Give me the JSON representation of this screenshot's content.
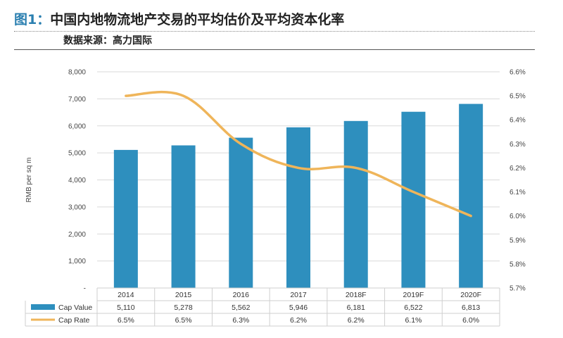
{
  "figure": {
    "label": "图1：",
    "title": "中国内地物流地产交易的平均估价及平均资本化率",
    "source": "数据来源：高力国际"
  },
  "chart_data": {
    "type": "bar",
    "categories": [
      "2014",
      "2015",
      "2016",
      "2017",
      "2018F",
      "2019F",
      "2020F"
    ],
    "series": [
      {
        "name": "Cap Value",
        "type": "bar",
        "axis": "left",
        "color": "#2e8fbe",
        "values": [
          5110,
          5278,
          5562,
          5946,
          6181,
          6522,
          6813
        ],
        "labels": [
          "5,110",
          "5,278",
          "5,562",
          "5,946",
          "6,181",
          "6,522",
          "6,813"
        ]
      },
      {
        "name": "Cap Rate",
        "type": "line",
        "axis": "right",
        "color": "#efb55a",
        "values": [
          6.5,
          6.5,
          6.3,
          6.2,
          6.2,
          6.1,
          6.0
        ],
        "labels": [
          "6.5%",
          "6.5%",
          "6.3%",
          "6.2%",
          "6.2%",
          "6.1%",
          "6.0%"
        ]
      }
    ],
    "ylabel": "RMB per sq m",
    "ylim": [
      0,
      8000
    ],
    "yticks": [
      "-",
      "1,000",
      "2,000",
      "3,000",
      "4,000",
      "5,000",
      "6,000",
      "7,000",
      "8,000"
    ],
    "y2lim": [
      5.7,
      6.6
    ],
    "y2ticks": [
      "5.7%",
      "5.8%",
      "5.9%",
      "6.0%",
      "6.1%",
      "6.2%",
      "6.3%",
      "6.4%",
      "6.5%",
      "6.6%"
    ],
    "grid": true,
    "legend": "data table below chart"
  }
}
